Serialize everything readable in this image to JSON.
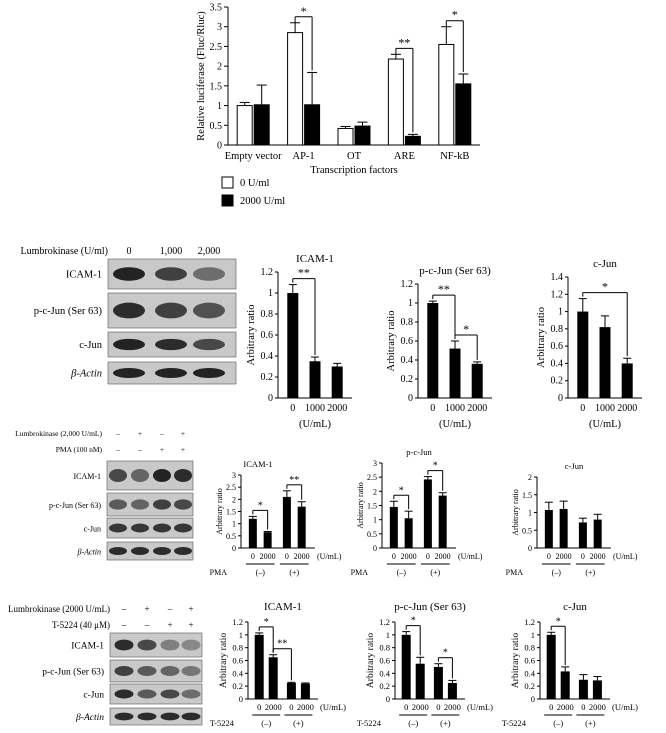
{
  "chart_data": [
    {
      "type": "bar",
      "title": "",
      "xlabel": "Transcription factors",
      "ylabel": "Relative luciferase (Fluc/Rluc)",
      "ylim": [
        0,
        3.5
      ],
      "categories": [
        "Empty vector",
        "AP-1",
        "OT",
        "ARE",
        "NF-kB"
      ],
      "series": [
        {
          "name": "0 U/ml",
          "fill": "#ffffff",
          "values": [
            1.0,
            2.85,
            0.42,
            2.18,
            2.55
          ],
          "errors": [
            0.08,
            0.25,
            0.05,
            0.12,
            0.45
          ]
        },
        {
          "name": "2000 U/ml",
          "fill": "#000000",
          "values": [
            1.02,
            1.02,
            0.48,
            0.22,
            1.55
          ],
          "errors": [
            0.5,
            0.82,
            0.1,
            0.05,
            0.25
          ]
        }
      ],
      "significance": [
        {
          "category": "AP-1",
          "label": "*"
        },
        {
          "category": "ARE",
          "label": "**"
        },
        {
          "category": "NF-kB",
          "label": "*"
        }
      ]
    },
    {
      "type": "bar",
      "title": "ICAM-1",
      "ylabel": "Arbitrary ratio",
      "xlabel": "(U/mL)",
      "ylim": [
        0,
        1.2
      ],
      "yticks": [
        0,
        0.2,
        0.4,
        0.6,
        0.8,
        1,
        1.2
      ],
      "categories": [
        "0",
        "1000",
        "2000"
      ],
      "values": [
        1.0,
        0.35,
        0.3
      ],
      "errors": [
        0.08,
        0.04,
        0.03
      ],
      "significance": [
        {
          "from": "0",
          "to": "1000",
          "label": "**"
        }
      ]
    },
    {
      "type": "bar",
      "title": "p-c-Jun (Ser 63)",
      "ylabel": "Arbitrary ratio",
      "xlabel": "(U/mL)",
      "ylim": [
        0,
        1.2
      ],
      "yticks": [
        0,
        0.2,
        0.4,
        0.6,
        0.8,
        1,
        1.2
      ],
      "categories": [
        "0",
        "1000",
        "2000"
      ],
      "values": [
        1.0,
        0.52,
        0.36
      ],
      "errors": [
        0.02,
        0.08,
        0.02
      ],
      "significance": [
        {
          "from": "0",
          "to": "1000",
          "label": "**"
        },
        {
          "from": "1000",
          "to": "2000",
          "label": "*"
        }
      ]
    },
    {
      "type": "bar",
      "title": "c-Jun",
      "ylabel": "Arbitrary ratio",
      "xlabel": "(U/mL)",
      "ylim": [
        0,
        1.4
      ],
      "yticks": [
        0,
        0.2,
        0.4,
        0.6,
        0.8,
        1,
        1.2,
        1.4
      ],
      "categories": [
        "0",
        "1000",
        "2000"
      ],
      "values": [
        1.0,
        0.82,
        0.4
      ],
      "errors": [
        0.15,
        0.13,
        0.06
      ],
      "significance": [
        {
          "from": "0",
          "to": "2000",
          "label": "*"
        }
      ]
    },
    {
      "type": "bar",
      "title": "ICAM-1",
      "ylabel": "Arbitrary ratio",
      "xlabel": "(U/mL)",
      "ylim": [
        0,
        3
      ],
      "yticks": [
        0,
        0.5,
        1,
        1.5,
        2,
        2.5,
        3
      ],
      "categories": [
        "0",
        "2000",
        "0",
        "2000"
      ],
      "group_prefix": "PMA",
      "groups": [
        "(–)",
        "(+)"
      ],
      "values": [
        1.2,
        0.65,
        2.1,
        1.7
      ],
      "errors": [
        0.1,
        0.03,
        0.25,
        0.2
      ],
      "significance": [
        {
          "from": 0,
          "to": 1,
          "label": "*"
        },
        {
          "from": 2,
          "to": 3,
          "label": "**"
        }
      ]
    },
    {
      "type": "bar",
      "title": "p-c-Jun",
      "ylabel": "Arbitrary ratio",
      "xlabel": "(U/mL)",
      "ylim": [
        0,
        3
      ],
      "yticks": [
        0,
        0.5,
        1,
        1.5,
        2,
        2.5,
        3
      ],
      "categories": [
        "0",
        "2000",
        "0",
        "2000"
      ],
      "group_prefix": "PMA",
      "groups": [
        "(–)",
        "(+)"
      ],
      "values": [
        1.45,
        1.05,
        2.42,
        1.85
      ],
      "errors": [
        0.2,
        0.25,
        0.1,
        0.1
      ],
      "significance": [
        {
          "from": 0,
          "to": 1,
          "label": "*"
        },
        {
          "from": 2,
          "to": 3,
          "label": "*"
        }
      ]
    },
    {
      "type": "bar",
      "title": "c-Jun",
      "ylabel": "Arbitrary ratio",
      "xlabel": "(U/mL)",
      "ylim": [
        0,
        2
      ],
      "yticks": [
        0,
        0.5,
        1,
        1.5,
        2
      ],
      "categories": [
        "0",
        "2000",
        "0",
        "2000"
      ],
      "group_prefix": "PMA",
      "groups": [
        "(–)",
        "(+)"
      ],
      "values": [
        1.07,
        1.1,
        0.72,
        0.8
      ],
      "errors": [
        0.22,
        0.22,
        0.12,
        0.15
      ],
      "significance": []
    },
    {
      "type": "bar",
      "title": "ICAM-1",
      "ylabel": "Arbitrary ratio",
      "xlabel": "(U/mL)",
      "ylim": [
        0,
        1.2
      ],
      "yticks": [
        0,
        0.2,
        0.4,
        0.6,
        0.8,
        1,
        1.2
      ],
      "categories": [
        "0",
        "2000",
        "0",
        "2000"
      ],
      "group_prefix": "T-5224",
      "groups": [
        "(–)",
        "(+)"
      ],
      "values": [
        1.0,
        0.65,
        0.25,
        0.24
      ],
      "errors": [
        0.03,
        0.04,
        0.01,
        0.01
      ],
      "significance": [
        {
          "from": 0,
          "to": 1,
          "label": "*"
        },
        {
          "from": 1,
          "to": 2,
          "label": "**"
        }
      ]
    },
    {
      "type": "bar",
      "title": "p-c-Jun (Ser 63)",
      "ylabel": "Arbitrary ratio",
      "xlabel": "(U/mL)",
      "ylim": [
        0,
        1.2
      ],
      "yticks": [
        0,
        0.2,
        0.4,
        0.6,
        0.8,
        1,
        1.2
      ],
      "categories": [
        "0",
        "2000",
        "0",
        "2000"
      ],
      "group_prefix": "T-5224",
      "groups": [
        "(–)",
        "(+)"
      ],
      "values": [
        1.0,
        0.55,
        0.5,
        0.25
      ],
      "errors": [
        0.05,
        0.1,
        0.05,
        0.04
      ],
      "significance": [
        {
          "from": 0,
          "to": 1,
          "label": "*"
        },
        {
          "from": 2,
          "to": 3,
          "label": "*"
        }
      ]
    },
    {
      "type": "bar",
      "title": "c-Jun",
      "ylabel": "Arbitrary ratio",
      "xlabel": "(U/mL)",
      "ylim": [
        0,
        1.2
      ],
      "yticks": [
        0,
        0.2,
        0.4,
        0.6,
        0.8,
        1,
        1.2
      ],
      "categories": [
        "0",
        "2000",
        "0",
        "2000"
      ],
      "group_prefix": "T-5224",
      "groups": [
        "(–)",
        "(+)"
      ],
      "values": [
        1.0,
        0.43,
        0.3,
        0.29
      ],
      "errors": [
        0.04,
        0.07,
        0.08,
        0.06
      ],
      "significance": [
        {
          "from": 0,
          "to": 1,
          "label": "*"
        }
      ]
    }
  ],
  "blots": [
    {
      "treatment_rows": [
        {
          "label": "Lumbrokinase (U/ml)",
          "marks": [
            "0",
            "1,000",
            "2,000"
          ]
        }
      ],
      "rows": [
        "ICAM-1",
        "p-c-Jun (Ser 63)",
        "c-Jun",
        "β-Actin"
      ]
    },
    {
      "treatment_rows": [
        {
          "label": "Lumbrokinase (2,000 U/mL)",
          "marks": [
            "–",
            "+",
            "–",
            "+"
          ]
        },
        {
          "label": "PMA (100 nM)",
          "marks": [
            "–",
            "–",
            "+",
            "+"
          ]
        }
      ],
      "rows": [
        "ICAM-1",
        "p-c-Jun (Ser 63)",
        "c-Jun",
        "β-Actin"
      ]
    },
    {
      "treatment_rows": [
        {
          "label": "Lumbrokinase (2000 U/mL)",
          "marks": [
            "–",
            "+",
            "–",
            "+"
          ]
        },
        {
          "label": "T-5224 (40 μM)",
          "marks": [
            "–",
            "–",
            "+",
            "+"
          ]
        }
      ],
      "rows": [
        "ICAM-1",
        "p-c-Jun (Ser 63)",
        "c-Jun",
        "β-Actin"
      ]
    }
  ]
}
